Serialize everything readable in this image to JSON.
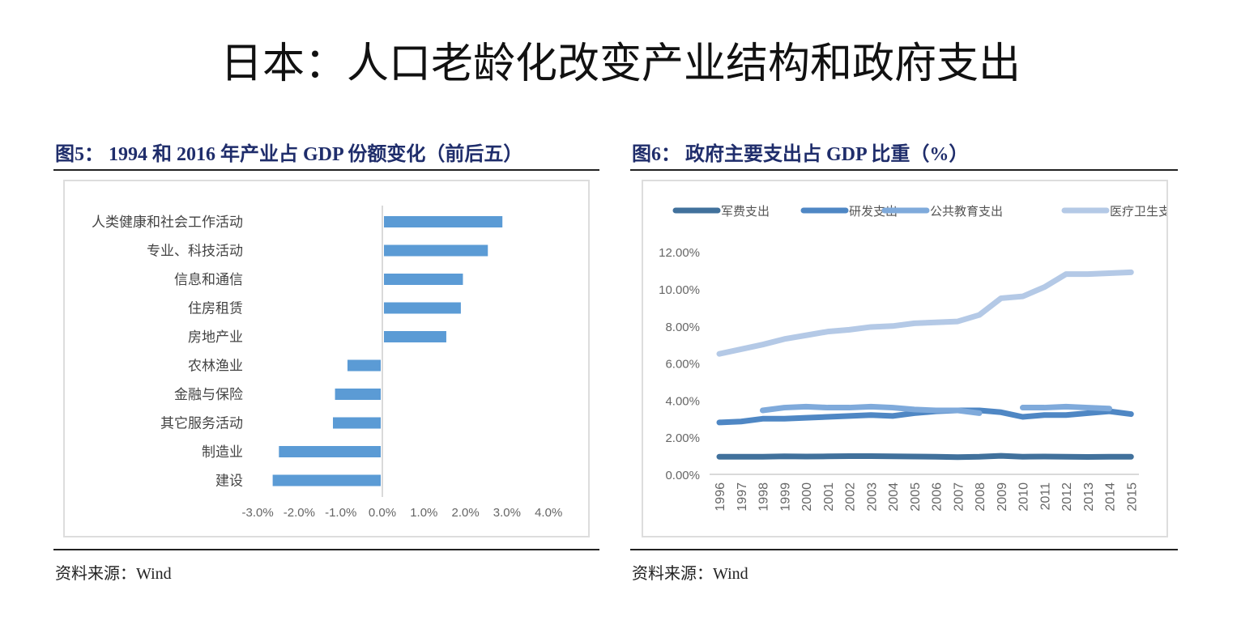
{
  "page_title": "日本：人口老龄化改变产业结构和政府支出",
  "source_left": "资料来源：Wind",
  "source_right": "资料来源：Wind",
  "chart_data": [
    {
      "type": "bar",
      "orientation": "horizontal",
      "title": "图5：  1994 和 2016 年产业占 GDP 份额变化（前后五）",
      "categories": [
        "人类健康和社会工作活动",
        "专业、科技活动",
        "信息和通信",
        "住房租赁",
        "房地产业",
        "农林渔业",
        "金融与保险",
        "其它服务活动",
        "制造业",
        "建设"
      ],
      "values": [
        2.85,
        2.5,
        1.9,
        1.85,
        1.5,
        -0.8,
        -1.1,
        -1.15,
        -2.45,
        -2.6
      ],
      "xlim": [
        -3.0,
        4.0
      ],
      "xticks": [
        "-3.0%",
        "-2.0%",
        "-1.0%",
        "0.0%",
        "1.0%",
        "2.0%",
        "3.0%",
        "4.0%"
      ],
      "color": "#5b9bd5",
      "grid": false
    },
    {
      "type": "line",
      "title": "图6：  政府主要支出占 GDP 比重（%）",
      "x": [
        "1996",
        "1997",
        "1998",
        "1999",
        "2000",
        "2001",
        "2002",
        "2003",
        "2004",
        "2005",
        "2006",
        "2007",
        "2008",
        "2009",
        "2010",
        "2011",
        "2012",
        "2013",
        "2014",
        "2015"
      ],
      "ylim": [
        0,
        12
      ],
      "yticks": [
        "0.00%",
        "2.00%",
        "4.00%",
        "6.00%",
        "8.00%",
        "10.00%",
        "12.00%"
      ],
      "legend": "top",
      "grid": false,
      "series": [
        {
          "name": "军费支出",
          "color": "#41719c",
          "values": [
            0.95,
            0.95,
            0.95,
            0.97,
            0.96,
            0.97,
            0.98,
            0.98,
            0.97,
            0.96,
            0.95,
            0.93,
            0.95,
            1.0,
            0.95,
            0.96,
            0.95,
            0.94,
            0.95,
            0.95
          ]
        },
        {
          "name": "研发支出",
          "color": "#4f87c4",
          "values": [
            2.8,
            2.85,
            3.0,
            3.0,
            3.05,
            3.1,
            3.15,
            3.2,
            3.15,
            3.3,
            3.4,
            3.45,
            3.45,
            3.35,
            3.1,
            3.2,
            3.2,
            3.3,
            3.4,
            3.25
          ]
        },
        {
          "name": "公共教育支出",
          "color": "#7faadb",
          "values": [
            null,
            null,
            3.45,
            3.6,
            3.65,
            3.6,
            3.6,
            3.65,
            3.6,
            3.5,
            3.45,
            3.45,
            3.3,
            null,
            3.6,
            3.6,
            3.65,
            3.6,
            3.55,
            null
          ]
        },
        {
          "name": "医疗卫生支出",
          "color": "#b4c9e6",
          "values": [
            6.5,
            6.75,
            7.0,
            7.3,
            7.5,
            7.7,
            7.8,
            7.95,
            8.0,
            8.15,
            8.2,
            8.25,
            8.6,
            9.5,
            9.6,
            10.1,
            10.8,
            10.8,
            10.85,
            10.9
          ]
        }
      ]
    }
  ]
}
